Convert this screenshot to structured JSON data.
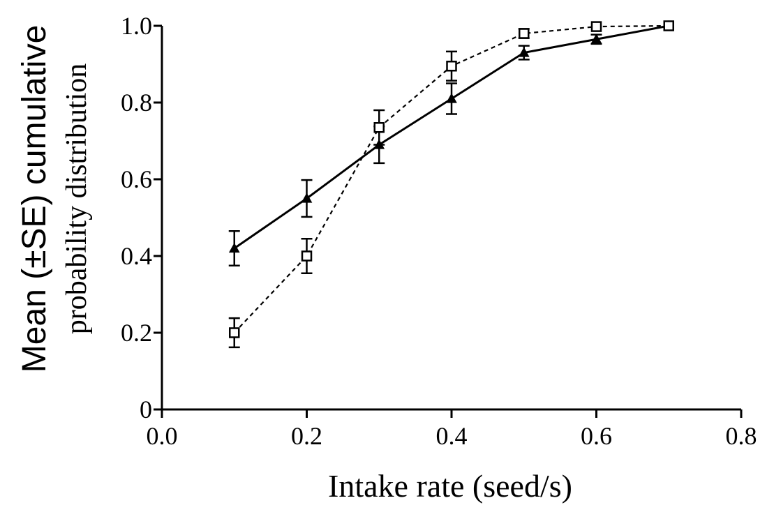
{
  "chart_data": {
    "type": "line",
    "xlabel": "Intake rate (seed/s)",
    "ylabel_line1": "Mean (±SE) cumulative",
    "ylabel_line2": "probability distribution",
    "xlim": [
      0.0,
      0.8
    ],
    "ylim": [
      0,
      1.0
    ],
    "x_ticks": [
      0.0,
      0.2,
      0.4,
      0.6,
      0.8
    ],
    "x_tick_labels": [
      "0.0",
      "0.2",
      "0.4",
      "0.6",
      "0.8"
    ],
    "y_ticks": [
      0,
      0.2,
      0.4,
      0.6,
      0.8,
      1.0
    ],
    "y_tick_labels": [
      "0",
      "0.2",
      "0.4",
      "0.6",
      "0.8",
      "1.0"
    ],
    "grid": false,
    "series": [
      {
        "marker": "triangle-filled",
        "line_style": "solid",
        "color": "#000000",
        "x": [
          0.1,
          0.2,
          0.3,
          0.4,
          0.5,
          0.6,
          0.7
        ],
        "y": [
          0.42,
          0.55,
          0.69,
          0.81,
          0.93,
          0.965,
          1.0
        ],
        "se": [
          0.045,
          0.048,
          0.048,
          0.04,
          0.018,
          0.012,
          0.0
        ]
      },
      {
        "marker": "square-open",
        "line_style": "dashed",
        "color": "#000000",
        "x": [
          0.1,
          0.2,
          0.3,
          0.4,
          0.5,
          0.6,
          0.7
        ],
        "y": [
          0.2,
          0.4,
          0.735,
          0.895,
          0.98,
          0.998,
          1.0
        ],
        "se": [
          0.038,
          0.045,
          0.045,
          0.038,
          0.012,
          0.0,
          0.0
        ]
      }
    ]
  }
}
